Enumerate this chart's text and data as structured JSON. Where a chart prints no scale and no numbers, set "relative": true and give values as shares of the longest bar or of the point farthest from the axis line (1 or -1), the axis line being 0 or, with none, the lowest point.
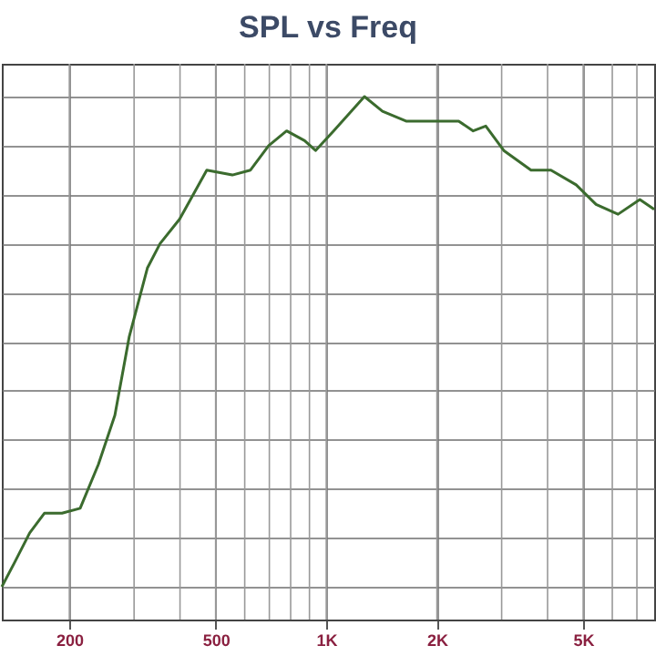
{
  "chart_data": {
    "type": "line",
    "title": "SPL vs Freq",
    "relative": true,
    "log": "x",
    "grid": true,
    "legend": false,
    "marker": "none",
    "line_style": "solid",
    "x": [
      131,
      142,
      156,
      171,
      191,
      214,
      240,
      266,
      291,
      326,
      353,
      399,
      473,
      555,
      622,
      697,
      780,
      873,
      935,
      1047,
      1270,
      1422,
      1648,
      1848,
      2070,
      2292,
      2510,
      2716,
      3040,
      3606,
      4085,
      4785,
      5420,
      6220,
      7130,
      7800
    ],
    "xlim": [
      131,
      7800
    ],
    "xticks": [
      200,
      500,
      {
        "value": 1000,
        "label": "1K"
      },
      {
        "value": 2000,
        "label": "2K"
      },
      {
        "value": 5000,
        "label": "5K"
      }
    ],
    "series": [
      {
        "color": "#3b6b2e",
        "values": [
          0,
          0.05,
          0.11,
          0.15,
          0.15,
          0.16,
          0.25,
          0.35,
          0.51,
          0.65,
          0.7,
          0.75,
          0.85,
          0.84,
          0.85,
          0.9,
          0.93,
          0.91,
          0.89,
          0.93,
          1,
          0.97,
          0.95,
          0.95,
          0.95,
          0.95,
          0.93,
          0.94,
          0.89,
          0.85,
          0.85,
          0.82,
          0.78,
          0.76,
          0.79,
          0.77
        ]
      }
    ]
  }
}
